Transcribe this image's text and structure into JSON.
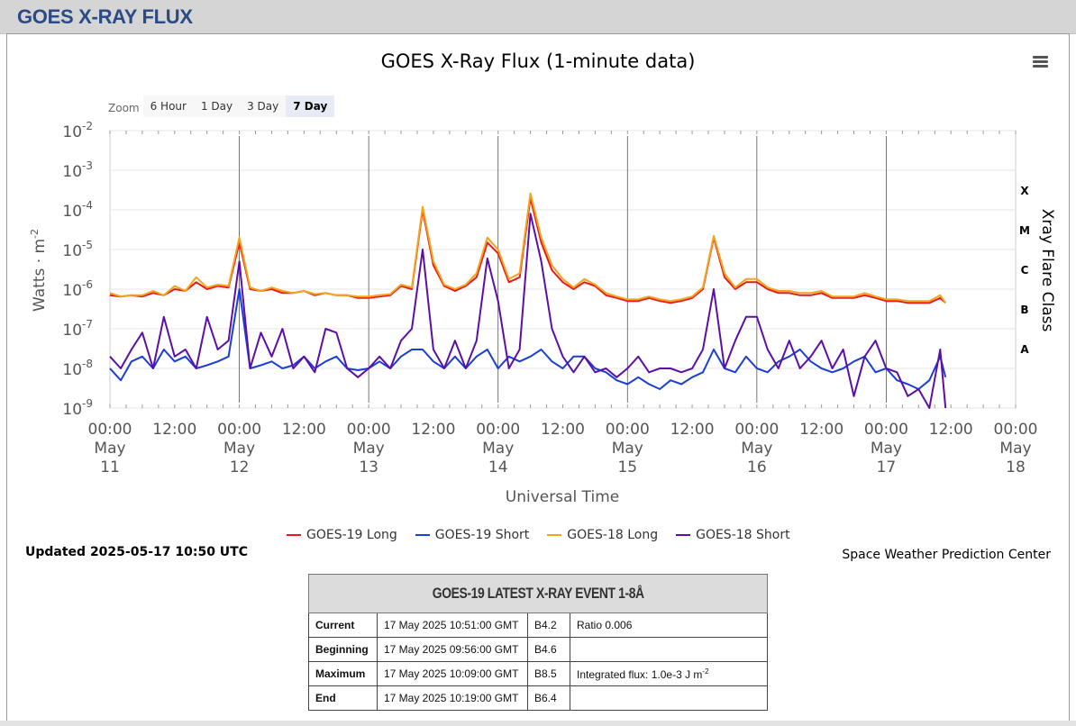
{
  "header": {
    "title": "GOES X-RAY FLUX"
  },
  "chart_data": {
    "type": "line",
    "title": "GOES X-Ray Flux (1-minute data)",
    "xlabel": "Universal Time",
    "ylabel": "Watts · m",
    "ylabel_sup": "-2",
    "y_right_label": "Xray Flare Class",
    "yscale": "log",
    "ylim": [
      1e-09,
      0.01
    ],
    "xlim": [
      "2025-05-11 00:00",
      "2025-05-18 00:00"
    ],
    "y_ticks": [
      {
        "base": "10",
        "exp": "-2"
      },
      {
        "base": "10",
        "exp": "-3"
      },
      {
        "base": "10",
        "exp": "-4"
      },
      {
        "base": "10",
        "exp": "-5"
      },
      {
        "base": "10",
        "exp": "-6"
      },
      {
        "base": "10",
        "exp": "-7"
      },
      {
        "base": "10",
        "exp": "-8"
      },
      {
        "base": "10",
        "exp": "-9"
      }
    ],
    "x_ticks": [
      {
        "time": "00:00",
        "month": "May",
        "day": "11"
      },
      {
        "time": "12:00",
        "month": "",
        "day": ""
      },
      {
        "time": "00:00",
        "month": "May",
        "day": "12"
      },
      {
        "time": "12:00",
        "month": "",
        "day": ""
      },
      {
        "time": "00:00",
        "month": "May",
        "day": "13"
      },
      {
        "time": "12:00",
        "month": "",
        "day": ""
      },
      {
        "time": "00:00",
        "month": "May",
        "day": "14"
      },
      {
        "time": "12:00",
        "month": "",
        "day": ""
      },
      {
        "time": "00:00",
        "month": "May",
        "day": "15"
      },
      {
        "time": "12:00",
        "month": "",
        "day": ""
      },
      {
        "time": "00:00",
        "month": "May",
        "day": "16"
      },
      {
        "time": "12:00",
        "month": "",
        "day": ""
      },
      {
        "time": "00:00",
        "month": "May",
        "day": "17"
      },
      {
        "time": "12:00",
        "month": "",
        "day": ""
      },
      {
        "time": "00:00",
        "month": "May",
        "day": "18"
      }
    ],
    "flare_classes": [
      {
        "label": "X",
        "value": 0.0001
      },
      {
        "label": "M",
        "value": 1e-05
      },
      {
        "label": "C",
        "value": 1e-06
      },
      {
        "label": "B",
        "value": 1e-07
      },
      {
        "label": "A",
        "value": 1e-08
      }
    ],
    "grid": true,
    "legend_position": "bottom",
    "series": [
      {
        "name": "GOES-19 Long",
        "color": "#e41a1c",
        "t_hours": [
          0,
          2,
          4,
          6,
          8,
          10,
          12,
          14,
          16,
          18,
          20,
          22,
          24,
          26,
          28,
          30,
          32,
          34,
          36,
          38,
          40,
          42,
          44,
          46,
          48,
          50,
          52,
          54,
          56,
          58,
          60,
          62,
          64,
          66,
          68,
          70,
          72,
          74,
          76,
          78,
          80,
          82,
          84,
          86,
          88,
          90,
          92,
          94,
          96,
          98,
          100,
          102,
          104,
          106,
          108,
          110,
          112,
          114,
          116,
          118,
          120,
          122,
          124,
          126,
          128,
          130,
          132,
          134,
          136,
          138,
          140,
          142,
          144,
          146,
          148,
          150,
          152,
          154,
          155
        ],
        "values": [
          7e-07,
          6.5e-07,
          7e-07,
          6.5e-07,
          8e-07,
          7e-07,
          1e-06,
          9e-07,
          1.5e-06,
          1e-06,
          1.2e-06,
          1.1e-06,
          1.5e-05,
          1e-06,
          9e-07,
          1e-06,
          8e-07,
          8e-07,
          9e-07,
          7e-07,
          8e-07,
          7e-07,
          7e-07,
          6e-07,
          6e-07,
          6.5e-07,
          7e-07,
          1.2e-06,
          1e-06,
          0.0001,
          4e-06,
          1.2e-06,
          9e-07,
          1.2e-06,
          2e-06,
          1.5e-05,
          8e-06,
          1.5e-06,
          2e-06,
          0.0002,
          1.5e-05,
          3e-06,
          1.5e-06,
          1e-06,
          1.5e-06,
          1.2e-06,
          7e-07,
          6e-07,
          5e-07,
          5e-07,
          6e-07,
          5e-07,
          4.5e-07,
          5e-07,
          6e-07,
          1e-06,
          2e-05,
          2e-06,
          1e-06,
          1.5e-06,
          1.5e-06,
          1e-06,
          8e-07,
          8e-07,
          7e-07,
          7e-07,
          8e-07,
          6e-07,
          6e-07,
          6e-07,
          7e-07,
          6e-07,
          5e-07,
          5e-07,
          4.5e-07,
          4.5e-07,
          4.5e-07,
          6e-07,
          4.5e-07
        ]
      },
      {
        "name": "GOES-19 Short",
        "color": "#1a3fd6",
        "t_hours": [
          0,
          2,
          4,
          6,
          8,
          10,
          12,
          14,
          16,
          18,
          20,
          22,
          24,
          26,
          28,
          30,
          32,
          34,
          36,
          38,
          40,
          42,
          44,
          46,
          48,
          50,
          52,
          54,
          56,
          58,
          60,
          62,
          64,
          66,
          68,
          70,
          72,
          74,
          76,
          78,
          80,
          82,
          84,
          86,
          88,
          90,
          92,
          94,
          96,
          98,
          100,
          102,
          104,
          106,
          108,
          110,
          112,
          114,
          116,
          118,
          120,
          122,
          124,
          126,
          128,
          130,
          132,
          134,
          136,
          138,
          140,
          142,
          144,
          146,
          148,
          150,
          152,
          154,
          155
        ],
        "values": [
          1e-08,
          5e-09,
          1.5e-08,
          2e-08,
          1e-08,
          3e-08,
          1.5e-08,
          2e-08,
          1e-08,
          1.2e-08,
          1.5e-08,
          2e-08,
          1e-06,
          1e-08,
          1.2e-08,
          1.5e-08,
          1e-08,
          1.2e-08,
          2e-08,
          1e-08,
          1.5e-08,
          2e-08,
          1e-08,
          9e-09,
          1e-08,
          1.5e-08,
          1e-08,
          2e-08,
          3e-08,
          3e-08,
          1.5e-08,
          1e-08,
          2e-08,
          1e-08,
          2e-08,
          3e-08,
          1e-08,
          2e-08,
          1.5e-08,
          2e-08,
          3e-08,
          1.5e-08,
          1e-08,
          2e-08,
          2e-08,
          1e-08,
          8e-09,
          5e-09,
          4e-09,
          6e-09,
          4e-09,
          3e-09,
          5e-09,
          4e-09,
          6e-09,
          8e-09,
          3e-08,
          1e-08,
          8e-09,
          2e-08,
          1e-08,
          8e-09,
          1.5e-08,
          2e-08,
          3e-08,
          1.5e-08,
          1e-08,
          8e-09,
          1e-08,
          1.5e-08,
          2e-08,
          8e-09,
          1e-08,
          5e-09,
          4e-09,
          3e-09,
          5e-09,
          2e-08,
          6e-09
        ]
      },
      {
        "name": "GOES-18 Long",
        "color": "#f5a31a",
        "t_hours": [
          0,
          2,
          4,
          6,
          8,
          10,
          12,
          14,
          16,
          18,
          20,
          22,
          24,
          26,
          28,
          30,
          32,
          34,
          36,
          38,
          40,
          42,
          44,
          46,
          48,
          50,
          52,
          54,
          56,
          58,
          60,
          62,
          64,
          66,
          68,
          70,
          72,
          74,
          76,
          78,
          80,
          82,
          84,
          86,
          88,
          90,
          92,
          94,
          96,
          98,
          100,
          102,
          104,
          106,
          108,
          110,
          112,
          114,
          116,
          118,
          120,
          122,
          124,
          126,
          128,
          130,
          132,
          134,
          136,
          138,
          140,
          142,
          144,
          146,
          148,
          150,
          152,
          154,
          155
        ],
        "values": [
          8e-07,
          6.5e-07,
          7e-07,
          7e-07,
          9e-07,
          7e-07,
          1.2e-06,
          9e-07,
          2e-06,
          1.1e-06,
          1.3e-06,
          1.2e-06,
          2e-05,
          1.1e-06,
          9e-07,
          1.1e-06,
          9e-07,
          8e-07,
          9e-07,
          7.5e-07,
          8e-07,
          7e-07,
          7e-07,
          6.5e-07,
          6.5e-07,
          7e-07,
          7.5e-07,
          1.3e-06,
          1.1e-06,
          0.00012,
          5e-06,
          1.3e-06,
          1e-06,
          1.3e-06,
          2.5e-06,
          2e-05,
          1e-05,
          1.8e-06,
          2.5e-06,
          0.00026,
          2e-05,
          4e-06,
          1.8e-06,
          1.1e-06,
          1.8e-06,
          1.3e-06,
          8e-07,
          6.5e-07,
          5.5e-07,
          5.5e-07,
          6.5e-07,
          5.5e-07,
          5e-07,
          5.5e-07,
          6.5e-07,
          1.1e-06,
          2.2e-05,
          2.5e-06,
          1.1e-06,
          1.8e-06,
          1.8e-06,
          1.1e-06,
          9e-07,
          9e-07,
          8e-07,
          8e-07,
          9e-07,
          6.5e-07,
          6.5e-07,
          6.5e-07,
          8e-07,
          6.5e-07,
          5.5e-07,
          5.5e-07,
          5e-07,
          5e-07,
          5e-07,
          7e-07,
          4.5e-07
        ]
      },
      {
        "name": "GOES-18 Short",
        "color": "#5c0fa8",
        "t_hours": [
          0,
          2,
          4,
          6,
          8,
          10,
          12,
          14,
          16,
          18,
          20,
          22,
          24,
          26,
          28,
          30,
          32,
          34,
          36,
          38,
          40,
          42,
          44,
          46,
          48,
          50,
          52,
          54,
          56,
          58,
          60,
          62,
          64,
          66,
          68,
          70,
          72,
          74,
          76,
          78,
          80,
          82,
          84,
          86,
          88,
          90,
          92,
          94,
          96,
          98,
          100,
          102,
          104,
          106,
          108,
          110,
          112,
          114,
          116,
          118,
          120,
          122,
          124,
          126,
          128,
          130,
          132,
          134,
          136,
          138,
          140,
          142,
          144,
          146,
          148,
          150,
          152,
          154,
          155
        ],
        "values": [
          2e-08,
          1e-08,
          3e-08,
          8e-08,
          1e-08,
          2e-07,
          2e-08,
          3e-08,
          1e-08,
          2e-07,
          3e-08,
          5e-08,
          5e-06,
          1e-08,
          8e-08,
          2e-08,
          1e-07,
          1e-08,
          2e-08,
          8e-09,
          1e-07,
          8e-08,
          1e-08,
          6e-09,
          1e-08,
          2e-08,
          1e-08,
          5e-08,
          1e-07,
          1e-05,
          3e-08,
          1e-08,
          5e-08,
          1e-08,
          5e-08,
          6e-06,
          5e-07,
          1e-08,
          3e-08,
          8e-05,
          5e-06,
          1e-07,
          2e-08,
          8e-09,
          2e-08,
          8e-09,
          1e-08,
          6e-09,
          1e-08,
          2e-08,
          8e-09,
          1e-08,
          1e-08,
          8e-09,
          1e-08,
          3e-08,
          1e-06,
          1e-08,
          5e-08,
          2e-07,
          2e-07,
          3e-08,
          1e-08,
          5e-08,
          1e-08,
          2e-08,
          5e-08,
          1e-08,
          3e-08,
          2e-09,
          2e-08,
          5e-08,
          1e-08,
          8e-09,
          2e-09,
          3e-09,
          1e-09,
          3e-08,
          1e-09
        ]
      }
    ]
  },
  "zoom": {
    "label": "Zoom",
    "buttons": [
      {
        "label": "6 Hour",
        "active": false
      },
      {
        "label": "1 Day",
        "active": false
      },
      {
        "label": "3 Day",
        "active": false
      },
      {
        "label": "7 Day",
        "active": true
      }
    ]
  },
  "legend": [
    {
      "label": "GOES-19 Long",
      "color": "#e41a1c"
    },
    {
      "label": "GOES-19 Short",
      "color": "#1a3fd6"
    },
    {
      "label": "GOES-18 Long",
      "color": "#f5a31a"
    },
    {
      "label": "GOES-18 Short",
      "color": "#5c0fa8"
    }
  ],
  "updated": "Updated 2025-05-17 10:50 UTC",
  "credits": "Space Weather Prediction Center",
  "event_table": {
    "title": "GOES-19 LATEST X-RAY EVENT 1-8Å",
    "rows": [
      {
        "key": "Current",
        "time": "17 May 2025 10:51:00 GMT",
        "cls": "B4.2",
        "extra": "Ratio 0.006",
        "extra_sup": ""
      },
      {
        "key": "Beginning",
        "time": "17 May 2025 09:56:00 GMT",
        "cls": "B4.6",
        "extra": "",
        "extra_sup": ""
      },
      {
        "key": "Maximum",
        "time": "17 May 2025 10:09:00 GMT",
        "cls": "B8.5",
        "extra": "Integrated flux: 1.0e-3 J m",
        "extra_sup": "-2"
      },
      {
        "key": "End",
        "time": "17 May 2025 10:19:00 GMT",
        "cls": "B6.4",
        "extra": "",
        "extra_sup": ""
      }
    ]
  }
}
